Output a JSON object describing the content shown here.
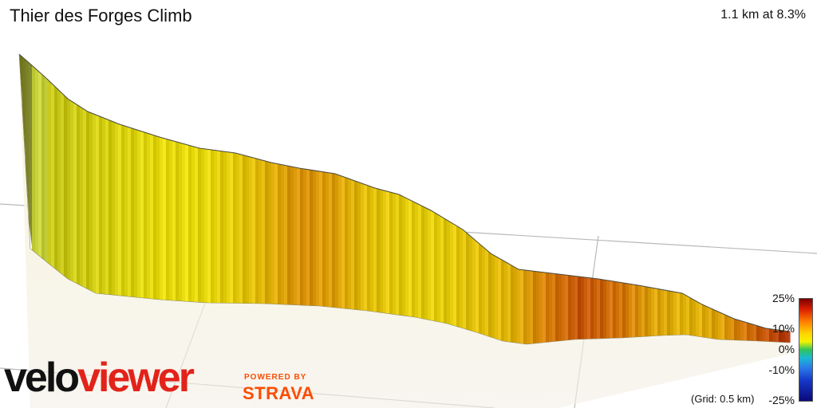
{
  "header": {
    "title": "Thier des Forges Climb",
    "stats": "1.1 km at 8.3%"
  },
  "legend": {
    "labels": [
      "25%",
      "10%",
      "0%",
      "-10%",
      "-25%"
    ],
    "grid_note": "(Grid: 0.5 km)",
    "colors": [
      "#7a0000",
      "#d81e00",
      "#ff7b00",
      "#ffd300",
      "#f2f200",
      "#2ec45a",
      "#1ab8d4",
      "#2a78e8",
      "#1638c8",
      "#0a0a7a"
    ]
  },
  "branding": {
    "velo": "velo",
    "viewer": "viewer",
    "powered_by": "POWERED BY",
    "strava": "STRAVA"
  },
  "chart_data": {
    "type": "area",
    "title": "Thier des Forges Climb",
    "subtitle": "1.1 km at 8.3%",
    "xlabel": "",
    "ylabel": "",
    "gradient_range": [
      -25,
      25
    ],
    "grid_spacing_km": 0.5,
    "series": [
      {
        "x": [
          0,
          0.05,
          0.1,
          0.15,
          0.2,
          0.25,
          0.3,
          0.35,
          0.4,
          0.45,
          0.5,
          0.55,
          0.6,
          0.65,
          0.7,
          0.75,
          0.8,
          0.85,
          0.9,
          0.95,
          1.0,
          1.05,
          1.1
        ],
        "gradient": [
          0,
          2,
          3,
          4,
          5,
          5,
          6,
          8,
          10,
          9,
          7,
          6,
          6,
          7,
          8,
          11,
          14,
          12,
          9,
          8,
          9,
          13,
          17
        ]
      }
    ]
  }
}
